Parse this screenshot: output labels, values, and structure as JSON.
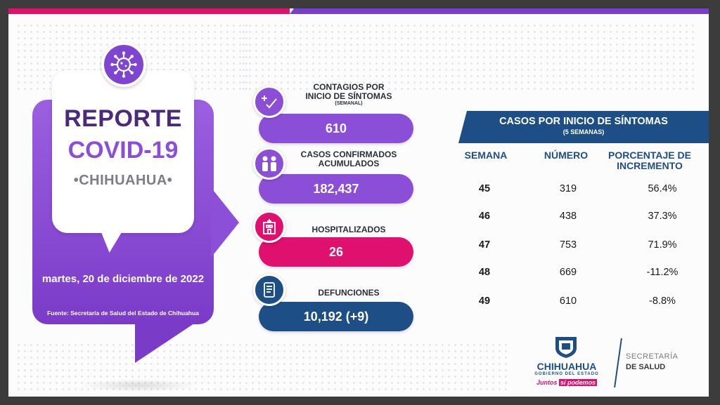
{
  "report": {
    "title_line1": "REPORTE",
    "title_line2": "COVID-19",
    "title_line3": "•CHIHUAHUA•",
    "date": "martes, 20 de diciembre de 2022",
    "source": "Fuente: Secretaría de Salud del Estado de Chihuahua"
  },
  "metrics": [
    {
      "label_line1": "CONTAGIOS POR",
      "label_line2": "INICIO DE SÍNTOMAS",
      "label_sub": "(SEMANAL)",
      "value": "610",
      "color": "#8a4fd6",
      "icon": "plus-check-icon"
    },
    {
      "label_line1": "CASOS CONFIRMADOS",
      "label_line2": "ACUMULADOS",
      "label_sub": "",
      "value": "182,437",
      "color": "#8a4fd6",
      "icon": "medical-staff-icon"
    },
    {
      "label_line1": "HOSPITALIZADOS",
      "label_line2": "",
      "label_sub": "",
      "value": "26",
      "color": "#e0106e",
      "icon": "hospital-icon"
    },
    {
      "label_line1": "DEFUNCIONES",
      "label_line2": "",
      "label_sub": "",
      "value": "10,192 (+9)",
      "color": "#1d4f86",
      "icon": "document-scroll-icon"
    }
  ],
  "table": {
    "title": "CASOS POR INICIO DE SÍNTOMAS",
    "subtitle": "(5 SEMANAS)",
    "headers": [
      "SEMANA",
      "NÚMERO",
      "PORCENTAJE DE INCREMENTO"
    ],
    "header_line1": "PORCENTAJE DE",
    "header_line2": "INCREMENTO",
    "rows": [
      {
        "week": "45",
        "number": "319",
        "pct": "56.4%"
      },
      {
        "week": "46",
        "number": "438",
        "pct": "37.3%"
      },
      {
        "week": "47",
        "number": "753",
        "pct": "71.9%"
      },
      {
        "week": "48",
        "number": "669",
        "pct": "-11.2%"
      },
      {
        "week": "49",
        "number": "610",
        "pct": "-8.8%"
      }
    ]
  },
  "logos": {
    "state": "CHIHUAHUA",
    "state_sub": "GOBIERNO DEL ESTADO",
    "slogan_a": "Juntos",
    "slogan_b": "sí podemos",
    "secretaria_line1": "SECRETARÍA",
    "secretaria_line2": "DE SALUD"
  },
  "colors": {
    "purple": "#8a4fd6",
    "pink": "#e0106e",
    "navy": "#1d4f86",
    "dark_purple": "#4a2a7a"
  }
}
